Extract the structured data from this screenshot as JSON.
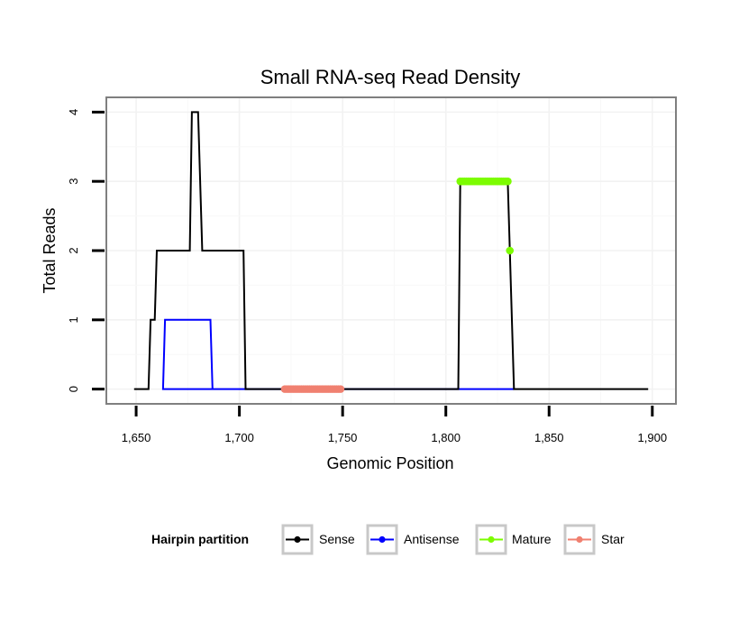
{
  "chart_data": {
    "type": "line",
    "title": "Small RNA-seq Read Density",
    "xlabel": "Genomic Position",
    "ylabel": "Total Reads",
    "xlim": [
      1636,
      1911
    ],
    "ylim": [
      -0.2,
      4.2
    ],
    "x_ticks": [
      1650,
      1700,
      1750,
      1800,
      1850,
      1900
    ],
    "x_tick_labels": [
      "1,650",
      "1,700",
      "1,750",
      "1,800",
      "1,850",
      "1,900"
    ],
    "y_ticks": [
      0,
      1,
      2,
      3,
      4
    ],
    "y_tick_labels": [
      "0",
      "1",
      "2",
      "3",
      "4"
    ],
    "grid": true,
    "legend_title": "Hairpin partition",
    "legend_position": "bottom",
    "series": [
      {
        "name": "Sense",
        "color": "#000000",
        "kind": "step-line",
        "points": [
          [
            1649,
            0
          ],
          [
            1656,
            0
          ],
          [
            1657,
            1
          ],
          [
            1659,
            1
          ],
          [
            1660,
            2
          ],
          [
            1676,
            2
          ],
          [
            1677,
            4
          ],
          [
            1680,
            4
          ],
          [
            1682,
            2
          ],
          [
            1702,
            2
          ],
          [
            1703,
            0
          ],
          [
            1806,
            0
          ],
          [
            1807,
            3
          ],
          [
            1830,
            3
          ],
          [
            1833,
            0
          ],
          [
            1898,
            0
          ]
        ]
      },
      {
        "name": "Antisense",
        "color": "#0000ff",
        "kind": "step-line",
        "points": [
          [
            1701,
            0
          ],
          [
            1663,
            0
          ],
          [
            1664,
            1
          ],
          [
            1686,
            1
          ],
          [
            1687,
            0
          ],
          [
            1703,
            0
          ],
          [
            1806,
            0
          ],
          [
            1833,
            0
          ]
        ]
      },
      {
        "name": "Mature",
        "color": "#7cfc00",
        "kind": "points",
        "segments": [
          {
            "x_start": 1807,
            "x_end": 1830,
            "y": 3
          }
        ],
        "points": [
          [
            1831,
            2
          ]
        ]
      },
      {
        "name": "Star",
        "color": "#f08070",
        "kind": "points",
        "segments": [
          {
            "x_start": 1722,
            "x_end": 1749,
            "y": 0
          }
        ],
        "points": []
      }
    ]
  }
}
